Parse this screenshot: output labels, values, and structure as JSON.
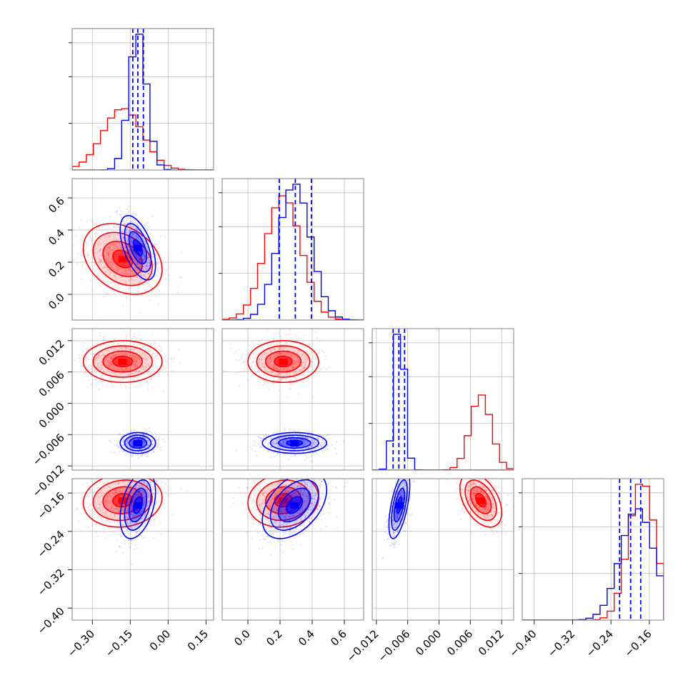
{
  "colors": {
    "model_a": "#ff0000",
    "model_b": "#0000ff"
  },
  "chart_data": {
    "type": "corner",
    "grid": true,
    "params": [
      {
        "range": [
          -0.38,
          0.18
        ],
        "ticks": [
          -0.3,
          -0.15,
          0.0,
          0.15
        ],
        "tick_labels": [
          "−0.30",
          "−0.15",
          "0.00",
          "0.15"
        ]
      },
      {
        "range": [
          -0.16,
          0.72
        ],
        "ticks": [
          0.0,
          0.2,
          0.4,
          0.6
        ],
        "tick_labels": [
          "0.0",
          "0.2",
          "0.4",
          "0.6"
        ]
      },
      {
        "range": [
          -0.0128,
          0.0143
        ],
        "ticks": [
          -0.012,
          -0.006,
          0.0,
          0.006,
          0.012
        ],
        "tick_labels": [
          "−0.012",
          "−0.006",
          "0.000",
          "0.006",
          "0.012"
        ]
      },
      {
        "range": [
          -0.425,
          -0.13
        ],
        "ticks": [
          -0.4,
          -0.32,
          -0.24,
          -0.16
        ],
        "tick_labels": [
          "−0.40",
          "−0.32",
          "−0.24",
          "−0.16"
        ]
      }
    ],
    "series": [
      {
        "color": "#ff0000",
        "mean": [
          -0.18,
          0.22,
          0.008,
          -0.175
        ],
        "sd": [
          0.078,
          0.11,
          0.002,
          0.028
        ],
        "corr": [
          [
            0,
            1,
            -0.3
          ],
          [
            0,
            3,
            0.1
          ],
          [
            1,
            3,
            0.1
          ],
          [
            2,
            3,
            -0.45
          ]
        ],
        "quantile_lines": []
      },
      {
        "color": "#0000ff",
        "mean": [
          -0.12,
          0.29,
          -0.0076,
          -0.185
        ],
        "sd": [
          0.035,
          0.1,
          0.001,
          0.035
        ],
        "corr": [
          [
            0,
            1,
            -0.55
          ],
          [
            0,
            3,
            0.4
          ],
          [
            1,
            3,
            0.45
          ],
          [
            2,
            3,
            0.6
          ]
        ],
        "quantile_lines": [
          [
            -0.14,
            -0.12,
            -0.098
          ],
          [
            0.195,
            0.295,
            0.395
          ],
          [
            -0.0088,
            -0.0077,
            -0.0066
          ],
          [
            -0.222,
            -0.199,
            -0.178
          ]
        ]
      }
    ]
  }
}
